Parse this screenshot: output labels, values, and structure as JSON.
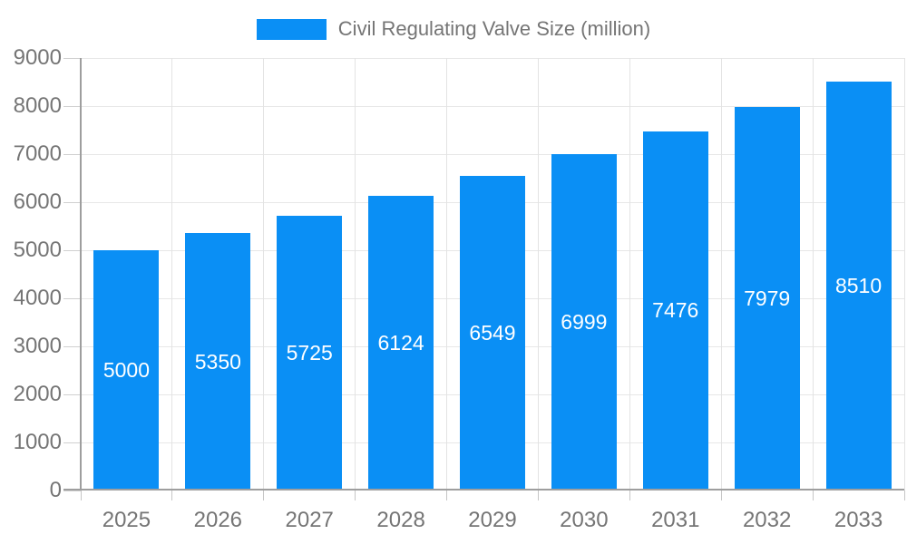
{
  "legend": {
    "label": "Civil Regulating Valve Size (million)"
  },
  "colors": {
    "bar": "#0a8ff5",
    "bar_label": "#ffffff",
    "axis_text": "#757575",
    "gridline": "#e7e7e7",
    "axis_line": "#9e9e9e"
  },
  "chart_data": {
    "type": "bar",
    "title": "",
    "legend_entries": [
      "Civil Regulating Valve Size (million)"
    ],
    "legend_position": "top",
    "categories": [
      "2025",
      "2026",
      "2027",
      "2028",
      "2029",
      "2030",
      "2031",
      "2032",
      "2033"
    ],
    "values": [
      5000,
      5350,
      5725,
      6124,
      6549,
      6999,
      7476,
      7979,
      8510
    ],
    "value_labels_inside_bars": true,
    "xlabel": "",
    "ylabel": "",
    "ylim": [
      0,
      9000
    ],
    "ytick_step": 1000,
    "yticks": [
      0,
      1000,
      2000,
      3000,
      4000,
      5000,
      6000,
      7000,
      8000,
      9000
    ],
    "grid": true
  }
}
